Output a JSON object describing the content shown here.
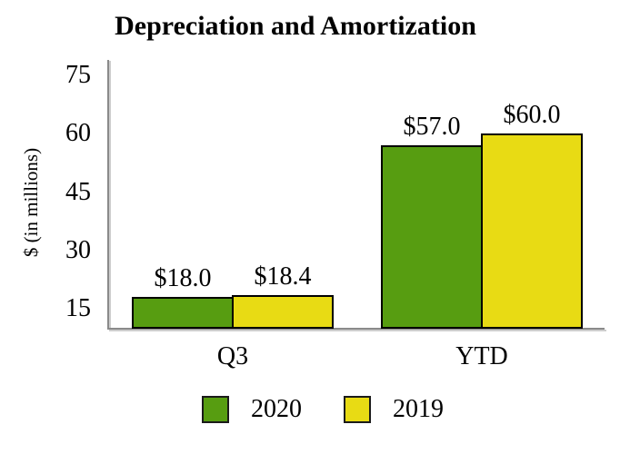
{
  "chart_data": {
    "type": "bar",
    "title": "Depreciation and Amortization",
    "ylabel": "$ (in millions)",
    "categories": [
      "Q3",
      "YTD"
    ],
    "series": [
      {
        "name": "2020",
        "color": "#579d11",
        "border_color": "#000000",
        "values": [
          18.0,
          57.0
        ],
        "value_labels": [
          "$18.0",
          "$57.0"
        ]
      },
      {
        "name": "2019",
        "color": "#e8db14",
        "border_color": "#000000",
        "values": [
          18.4,
          60.0
        ],
        "value_labels": [
          "$18.4",
          "$60.0"
        ]
      }
    ],
    "y_axis": {
      "min": 10,
      "ticks": [
        15,
        30,
        45,
        60,
        75
      ],
      "max_tick": 75
    },
    "grid": false,
    "legend_position": "bottom",
    "axis_color": "#8a8a8a",
    "text_color": "#000000"
  }
}
